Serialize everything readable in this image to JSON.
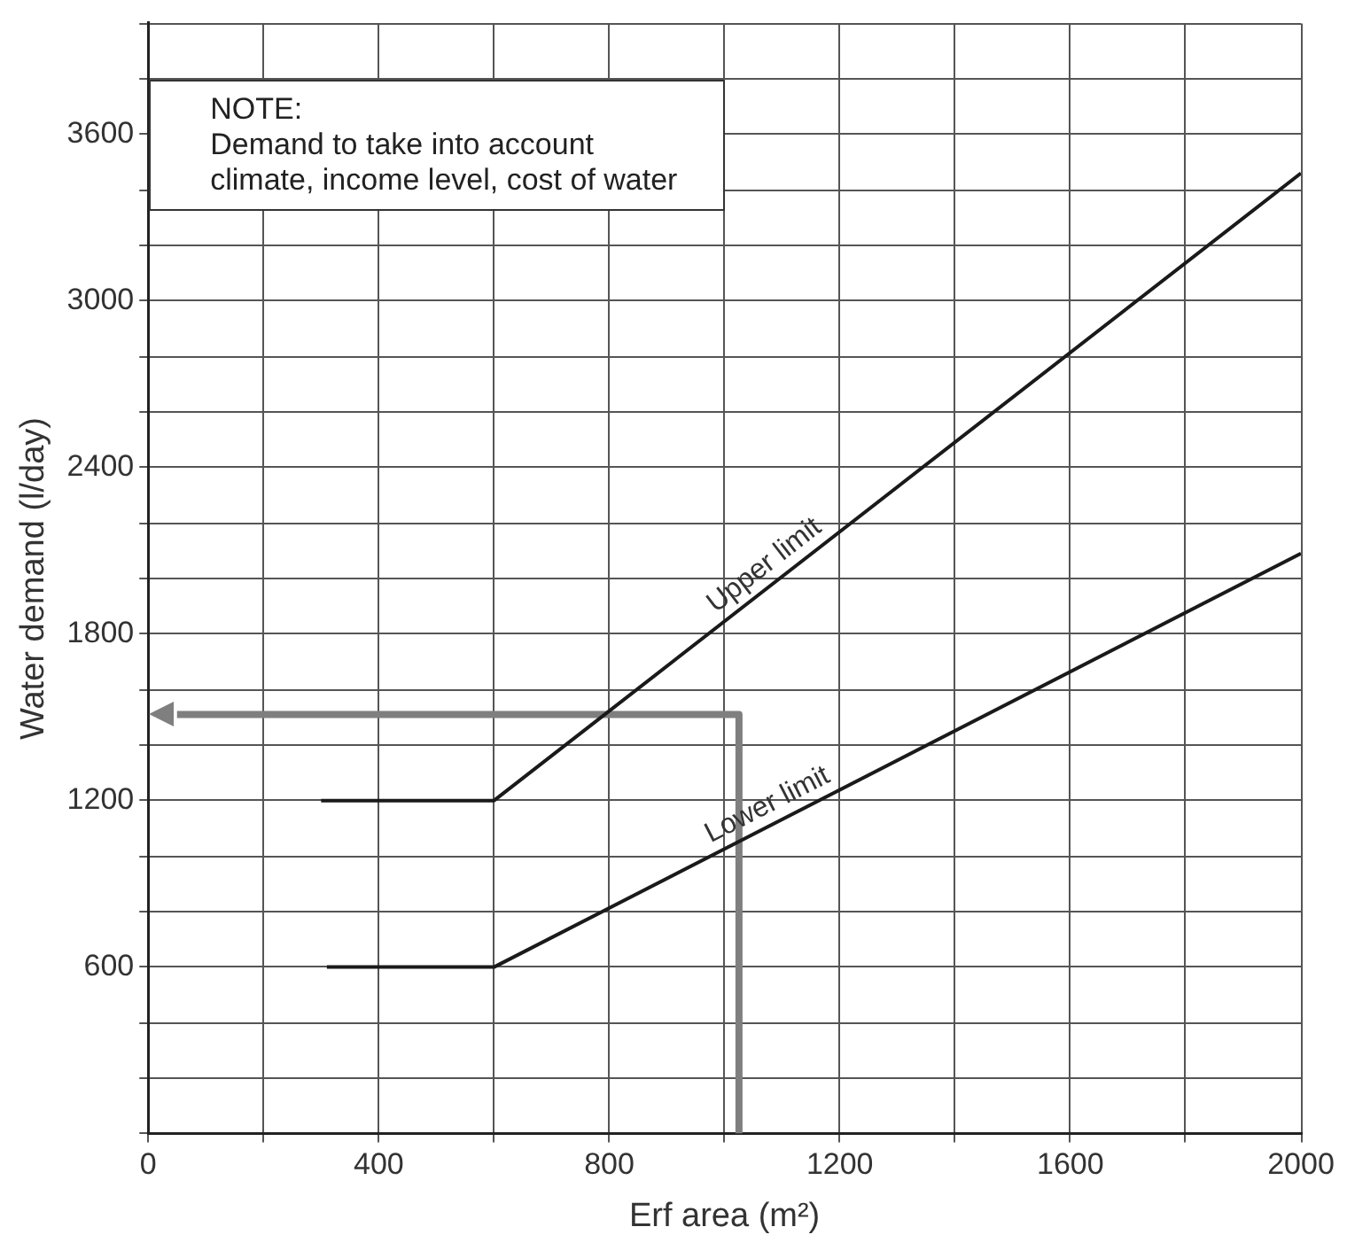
{
  "chart_data": {
    "type": "line",
    "xlabel": "Erf area (m²)",
    "ylabel": "Water demand (l/day)",
    "xlim": [
      0,
      2000
    ],
    "ylim": [
      0,
      4000
    ],
    "xticks": [
      0,
      {
        "value": 200,
        "label": null
      },
      400,
      {
        "value": 600,
        "label": null
      },
      800,
      {
        "value": 1000,
        "label": null
      },
      1200,
      {
        "value": 1400,
        "label": null
      },
      1600,
      {
        "value": 1800,
        "label": null
      },
      2000
    ],
    "yticks": [
      {
        "value": 0,
        "label": null
      },
      {
        "value": 200,
        "label": null
      },
      {
        "value": 400,
        "label": null
      },
      600,
      {
        "value": 800,
        "label": null
      },
      {
        "value": 1000,
        "label": null
      },
      1200,
      {
        "value": 1400,
        "label": null
      },
      {
        "value": 1600,
        "label": null
      },
      1800,
      {
        "value": 2000,
        "label": null
      },
      {
        "value": 2200,
        "label": null
      },
      2400,
      {
        "value": 2600,
        "label": null
      },
      {
        "value": 2800,
        "label": null
      },
      3000,
      {
        "value": 3200,
        "label": null
      },
      {
        "value": 3400,
        "label": null
      },
      3600,
      {
        "value": 3800,
        "label": null
      },
      {
        "value": 4000,
        "label": null
      }
    ],
    "grid": true,
    "legend": false,
    "marker": "none",
    "line_style": "solid",
    "series": [
      {
        "name": "Upper limit",
        "color": "#1a1a1a",
        "x": [
          300,
          600,
          2000
        ],
        "values": [
          1200,
          1200,
          3460
        ]
      },
      {
        "name": "Lower limit",
        "color": "#1a1a1a",
        "x": [
          310,
          600,
          2000
        ],
        "values": [
          600,
          600,
          2090
        ]
      },
      {
        "color": "#7f7f7f",
        "x": [
          1025,
          1025,
          50
        ],
        "values": [
          0,
          1510,
          1510
        ]
      }
    ],
    "annotations": [
      "NOTE:\nDemand to take into account climate, income level, cost of water"
    ]
  }
}
